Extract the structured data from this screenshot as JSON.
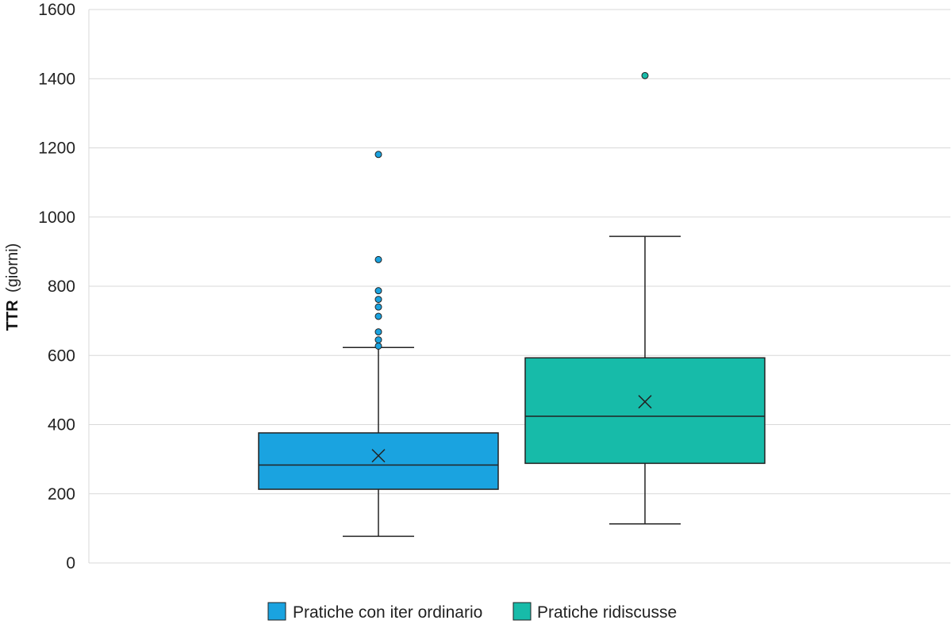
{
  "chart_data": {
    "type": "box",
    "title": "",
    "ylabel_bold": "TTR",
    "ylabel_rest": "(giorni)",
    "xlabel": "",
    "ylim": [
      0,
      1600
    ],
    "yticks": [
      "0",
      "200",
      "400",
      "600",
      "800",
      "1000",
      "1200",
      "1400",
      "1600"
    ],
    "grid": true,
    "legend_position": "bottom",
    "series": [
      {
        "name": "Pratiche con iter ordinario",
        "color": "#1aa3e0",
        "min": 77,
        "q1": 213,
        "median": 283,
        "q3": 376,
        "max": 623,
        "mean": 310,
        "outliers": [
          627,
          645,
          668,
          713,
          740,
          762,
          787,
          877,
          1181
        ]
      },
      {
        "name": "Pratiche ridiscusse",
        "color": "#17bba9",
        "min": 113,
        "q1": 288,
        "median": 424,
        "q3": 593,
        "max": 944,
        "mean": 466,
        "outliers": [
          1409
        ]
      }
    ]
  }
}
